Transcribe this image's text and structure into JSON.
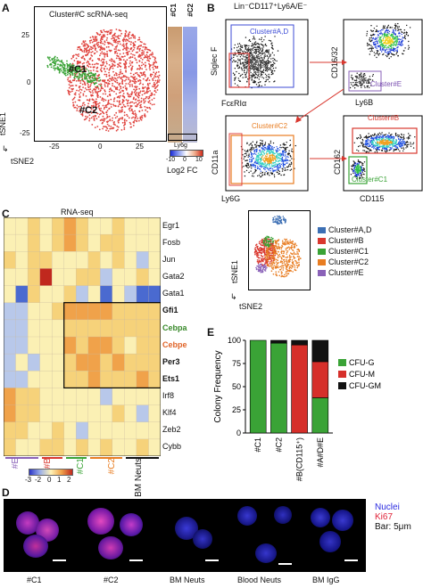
{
  "panel_letters": {
    "a": "A",
    "b": "B",
    "c": "C",
    "d": "D",
    "e": "E"
  },
  "panelA": {
    "title": "Cluster#C scRNA-seq",
    "labels": {
      "c1": "#C1",
      "c2": "#C2"
    },
    "ylabel": "tSNE1",
    "xlabel": "tSNE2",
    "xticks": [
      "-25",
      "0",
      "25"
    ],
    "yticks": [
      "25",
      "0",
      "-25"
    ],
    "bar_cols": [
      "#C1",
      "#C2"
    ],
    "bar_gene": "Ly6g",
    "scale_ticks": [
      "-10",
      "0",
      "10"
    ],
    "scale_label": "Log2 FC",
    "colors": {
      "c1": "#3aa336",
      "c2": "#e0443f"
    }
  },
  "panelB": {
    "gate_title": "Lin⁻CD117⁺Ly6A/E⁻",
    "plots": [
      {
        "ylabel": "Siglec F",
        "xlabel": "FcεRIα",
        "gate_label": "Cluster#A,D"
      },
      {
        "ylabel": "CD16/32",
        "xlabel": "Ly6B",
        "gate_label": "Cluster#E"
      },
      {
        "ylabel": "CD11a",
        "xlabel": "Ly6G",
        "gate_label": "Cluster#C2"
      },
      {
        "ylabel": "CD162",
        "xlabel": "CD115",
        "gate_label": "Cluster#B",
        "gate_label2": "Cluster#C1"
      }
    ],
    "tsne_ylabel": "tSNE1",
    "tsne_xlabel": "tSNE2",
    "legend": [
      {
        "label": "Cluster#A,D",
        "color": "#3c6fb4"
      },
      {
        "label": "Cluster#B",
        "color": "#d9382f"
      },
      {
        "label": "Cluster#C1",
        "color": "#3aa336"
      },
      {
        "label": "Cluster#C2",
        "color": "#e87d22"
      },
      {
        "label": "Cluster#E",
        "color": "#8a62b8"
      }
    ]
  },
  "panelC": {
    "title": "RNA-seq",
    "genes": [
      {
        "name": "Egr1",
        "bold": false,
        "color": "#111111"
      },
      {
        "name": "Fosb",
        "bold": false,
        "color": "#111111"
      },
      {
        "name": "Jun",
        "bold": false,
        "color": "#111111"
      },
      {
        "name": "Gata2",
        "bold": false,
        "color": "#111111"
      },
      {
        "name": "Gata1",
        "bold": false,
        "color": "#111111"
      },
      {
        "name": "Gfi1",
        "bold": true,
        "color": "#111111"
      },
      {
        "name": "Cebpa",
        "bold": true,
        "color": "#3a8a2c"
      },
      {
        "name": "Cebpe",
        "bold": true,
        "color": "#e0652a"
      },
      {
        "name": "Per3",
        "bold": true,
        "color": "#111111"
      },
      {
        "name": "Ets1",
        "bold": true,
        "color": "#111111"
      },
      {
        "name": "Irf8",
        "bold": false,
        "color": "#111111"
      },
      {
        "name": "Klf4",
        "bold": false,
        "color": "#111111"
      },
      {
        "name": "Zeb2",
        "bold": false,
        "color": "#111111"
      },
      {
        "name": "Cybb",
        "bold": false,
        "color": "#111111"
      }
    ],
    "groups": [
      {
        "label": "#E",
        "color": "#8a62b8"
      },
      {
        "label": "#B",
        "color": "#d9382f"
      },
      {
        "label": "#C1",
        "color": "#3aa336"
      },
      {
        "label": "#C2",
        "color": "#e87d22"
      },
      {
        "label": "BM Neuts",
        "color": "#111111"
      }
    ],
    "scale_ticks": [
      "-3",
      "-2",
      "0",
      "1",
      "2"
    ]
  },
  "chart_data": {
    "type": "bar",
    "title": "",
    "ylabel": "Colony Frequency",
    "xlabel": "",
    "ylim": [
      0,
      100
    ],
    "yticks": [
      "0",
      "25",
      "50",
      "75",
      "100"
    ],
    "categories": [
      "#C1",
      "#C2",
      "#B(CD115⁺)",
      "#A#D#E"
    ],
    "series": [
      {
        "name": "CFU-G",
        "color": "#3aa336",
        "values": [
          100,
          97,
          0,
          38
        ]
      },
      {
        "name": "CFU-M",
        "color": "#d62f2a",
        "values": [
          0,
          0,
          95,
          39
        ]
      },
      {
        "name": "CFU-GM",
        "color": "#111111",
        "values": [
          0,
          3,
          5,
          23
        ]
      }
    ],
    "legend_position": "right"
  },
  "panelD": {
    "labels": [
      "#C1",
      "#C2",
      "BM Neuts",
      "Blood Neuts",
      "BM IgG"
    ],
    "legend": [
      {
        "label": "Nuclei",
        "color": "#2b2be0"
      },
      {
        "label": "Ki67",
        "color": "#e0253a"
      },
      {
        "label": "Bar: 5μm",
        "color": "#111111"
      }
    ]
  }
}
